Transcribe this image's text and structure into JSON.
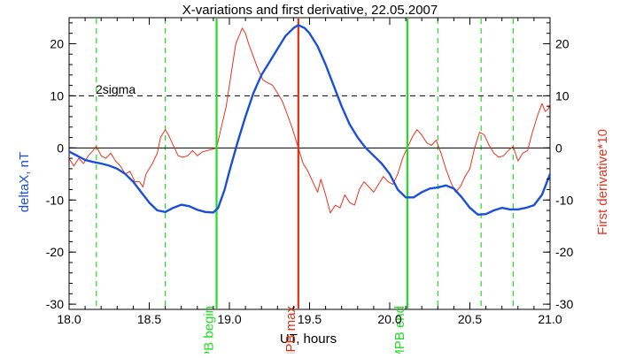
{
  "chart_data": {
    "type": "line",
    "title": "X-variations and first derivative, 22.05.2007",
    "xlabel": "UT, hours",
    "ylabel_left": "deltaX, nT",
    "ylabel_right": "First derivative*10",
    "xlim": [
      18.0,
      21.0
    ],
    "ylim": [
      -31,
      25
    ],
    "x_ticks": [
      18.0,
      18.5,
      19.0,
      19.5,
      20.0,
      20.5,
      21.0
    ],
    "x_tick_labels": [
      "18.0",
      "18.5",
      "19.0",
      "19.5",
      "20.0",
      "20.5",
      "21.0"
    ],
    "y_ticks": [
      -30,
      -20,
      -10,
      0,
      10,
      20
    ],
    "y_tick_labels": [
      "-30",
      "-20",
      "-10",
      "0",
      "10",
      "20"
    ],
    "grid": false,
    "colors": {
      "deltaX": "#1a4fdc",
      "derivative": "#e8321e",
      "marker_green": "#22dd22",
      "marker_red": "#e03014",
      "sigma": "#000000",
      "zero": "#000000"
    },
    "threshold": {
      "label": "2sigma",
      "y": 10
    },
    "zero_line": 0,
    "dashed_green_lines": [
      18.17,
      18.6,
      20.3,
      20.57,
      20.77
    ],
    "markers": [
      {
        "x": 18.92,
        "label": "MPB begin",
        "kind": "green"
      },
      {
        "x": 19.43,
        "label": "MPB max",
        "kind": "red"
      },
      {
        "x": 20.11,
        "label": "MPB end",
        "kind": "green"
      }
    ],
    "series": [
      {
        "name": "deltaX, nT",
        "points": [
          [
            18.0,
            -0.7
          ],
          [
            18.05,
            -1.5
          ],
          [
            18.1,
            -2.3
          ],
          [
            18.15,
            -2.7
          ],
          [
            18.2,
            -3.0
          ],
          [
            18.25,
            -3.4
          ],
          [
            18.3,
            -4.0
          ],
          [
            18.35,
            -5.0
          ],
          [
            18.4,
            -6.5
          ],
          [
            18.45,
            -8.5
          ],
          [
            18.5,
            -10.5
          ],
          [
            18.55,
            -12.0
          ],
          [
            18.6,
            -12.3
          ],
          [
            18.65,
            -11.5
          ],
          [
            18.7,
            -10.9
          ],
          [
            18.75,
            -11.2
          ],
          [
            18.8,
            -11.9
          ],
          [
            18.85,
            -12.3
          ],
          [
            18.9,
            -12.4
          ],
          [
            18.93,
            -11.5
          ],
          [
            18.97,
            -8.0
          ],
          [
            19.0,
            -4.5
          ],
          [
            19.05,
            1.0
          ],
          [
            19.1,
            6.0
          ],
          [
            19.15,
            10.5
          ],
          [
            19.2,
            14.0
          ],
          [
            19.25,
            16.5
          ],
          [
            19.3,
            19.0
          ],
          [
            19.35,
            21.5
          ],
          [
            19.4,
            23.0
          ],
          [
            19.43,
            23.6
          ],
          [
            19.47,
            23.0
          ],
          [
            19.5,
            22.0
          ],
          [
            19.55,
            19.5
          ],
          [
            19.6,
            16.0
          ],
          [
            19.65,
            12.0
          ],
          [
            19.7,
            8.0
          ],
          [
            19.75,
            4.5
          ],
          [
            19.8,
            2.0
          ],
          [
            19.85,
            0.0
          ],
          [
            19.9,
            -1.5
          ],
          [
            19.95,
            -3.0
          ],
          [
            20.0,
            -5.0
          ],
          [
            20.05,
            -8.0
          ],
          [
            20.1,
            -9.5
          ],
          [
            20.15,
            -9.5
          ],
          [
            20.2,
            -8.5
          ],
          [
            20.25,
            -7.8
          ],
          [
            20.3,
            -7.6
          ],
          [
            20.35,
            -7.2
          ],
          [
            20.4,
            -7.8
          ],
          [
            20.45,
            -9.5
          ],
          [
            20.5,
            -11.5
          ],
          [
            20.55,
            -12.8
          ],
          [
            20.6,
            -12.7
          ],
          [
            20.65,
            -12.0
          ],
          [
            20.7,
            -11.5
          ],
          [
            20.75,
            -11.8
          ],
          [
            20.8,
            -11.8
          ],
          [
            20.85,
            -11.5
          ],
          [
            20.9,
            -11.0
          ],
          [
            20.95,
            -9.0
          ],
          [
            21.0,
            -5.0
          ]
        ]
      },
      {
        "name": "First derivative*10",
        "points": [
          [
            18.0,
            -2.0
          ],
          [
            18.03,
            -3.5
          ],
          [
            18.06,
            -2.0
          ],
          [
            18.09,
            -3.0
          ],
          [
            18.12,
            -1.5
          ],
          [
            18.15,
            -0.5
          ],
          [
            18.17,
            0.3
          ],
          [
            18.2,
            -1.5
          ],
          [
            18.23,
            -2.0
          ],
          [
            18.26,
            -1.0
          ],
          [
            18.29,
            -2.5
          ],
          [
            18.32,
            -3.5
          ],
          [
            18.35,
            -5.0
          ],
          [
            18.38,
            -4.5
          ],
          [
            18.41,
            -6.5
          ],
          [
            18.44,
            -6.5
          ],
          [
            18.46,
            -7.5
          ],
          [
            18.48,
            -5.0
          ],
          [
            18.5,
            -4.0
          ],
          [
            18.52,
            -3.0
          ],
          [
            18.55,
            -1.0
          ],
          [
            18.57,
            2.0
          ],
          [
            18.6,
            3.5
          ],
          [
            18.62,
            2.5
          ],
          [
            18.65,
            0.5
          ],
          [
            18.68,
            -1.5
          ],
          [
            18.71,
            -1.8
          ],
          [
            18.74,
            -1.5
          ],
          [
            18.77,
            -0.5
          ],
          [
            18.8,
            -1.5
          ],
          [
            18.83,
            -0.8
          ],
          [
            18.86,
            -0.5
          ],
          [
            18.89,
            -0.3
          ],
          [
            18.92,
            0.0
          ],
          [
            18.95,
            4.0
          ],
          [
            18.98,
            8.0
          ],
          [
            19.0,
            12.0
          ],
          [
            19.02,
            16.0
          ],
          [
            19.04,
            20.0
          ],
          [
            19.06,
            21.5
          ],
          [
            19.08,
            23.0
          ],
          [
            19.1,
            22.0
          ],
          [
            19.12,
            20.0
          ],
          [
            19.15,
            17.5
          ],
          [
            19.18,
            15.0
          ],
          [
            19.21,
            13.0
          ],
          [
            19.24,
            12.5
          ],
          [
            19.27,
            12.0
          ],
          [
            19.3,
            10.5
          ],
          [
            19.33,
            9.0
          ],
          [
            19.36,
            6.5
          ],
          [
            19.39,
            4.0
          ],
          [
            19.41,
            2.0
          ],
          [
            19.43,
            0.0
          ],
          [
            19.46,
            -3.0
          ],
          [
            19.49,
            -4.5
          ],
          [
            19.52,
            -6.5
          ],
          [
            19.55,
            -8.5
          ],
          [
            19.57,
            -6.0
          ],
          [
            19.6,
            -9.0
          ],
          [
            19.63,
            -12.5
          ],
          [
            19.66,
            -11.0
          ],
          [
            19.69,
            -11.5
          ],
          [
            19.72,
            -9.0
          ],
          [
            19.75,
            -10.5
          ],
          [
            19.78,
            -11.0
          ],
          [
            19.81,
            -8.0
          ],
          [
            19.84,
            -6.5
          ],
          [
            19.87,
            -7.5
          ],
          [
            19.9,
            -8.5
          ],
          [
            19.93,
            -7.0
          ],
          [
            19.96,
            -5.5
          ],
          [
            19.99,
            -6.5
          ],
          [
            20.02,
            -7.0
          ],
          [
            20.05,
            -5.0
          ],
          [
            20.08,
            -2.0
          ],
          [
            20.11,
            0.0
          ],
          [
            20.14,
            2.0
          ],
          [
            20.17,
            3.5
          ],
          [
            20.2,
            2.5
          ],
          [
            20.23,
            1.0
          ],
          [
            20.26,
            0.5
          ],
          [
            20.29,
            1.5
          ],
          [
            20.32,
            -1.0
          ],
          [
            20.35,
            -4.0
          ],
          [
            20.38,
            -6.5
          ],
          [
            20.41,
            -8.5
          ],
          [
            20.44,
            -7.5
          ],
          [
            20.47,
            -5.5
          ],
          [
            20.5,
            -4.0
          ],
          [
            20.53,
            0.0
          ],
          [
            20.56,
            3.0
          ],
          [
            20.59,
            2.5
          ],
          [
            20.62,
            0.5
          ],
          [
            20.65,
            -1.0
          ],
          [
            20.68,
            -1.8
          ],
          [
            20.71,
            -1.5
          ],
          [
            20.74,
            -0.5
          ],
          [
            20.77,
            0.3
          ],
          [
            20.8,
            -2.5
          ],
          [
            20.83,
            -1.0
          ],
          [
            20.86,
            -0.5
          ],
          [
            20.89,
            3.0
          ],
          [
            20.92,
            6.0
          ],
          [
            20.95,
            8.5
          ],
          [
            20.97,
            7.0
          ],
          [
            20.99,
            7.5
          ],
          [
            21.0,
            8.5
          ]
        ]
      }
    ]
  }
}
